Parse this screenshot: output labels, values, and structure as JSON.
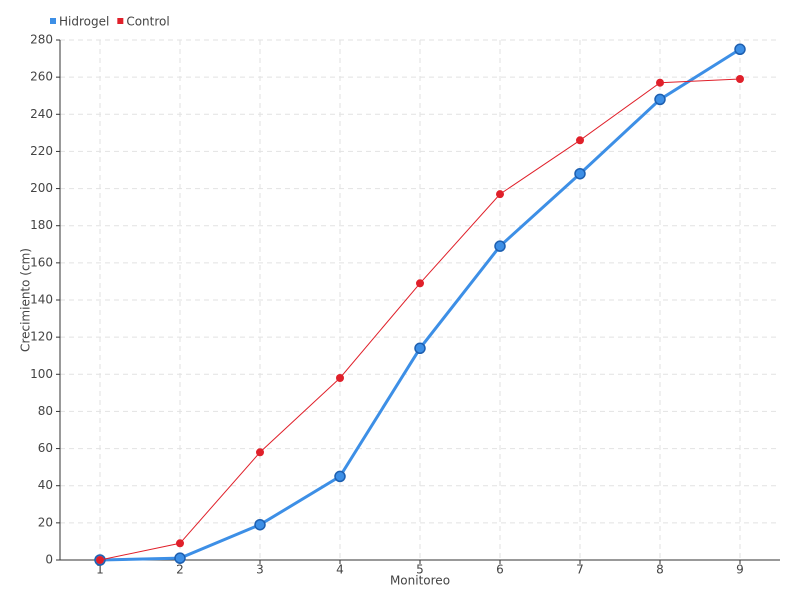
{
  "chart_data": {
    "type": "line",
    "x_label": "Monitoreo",
    "y_label": "Crecimiento (cm)",
    "x": [
      1,
      2,
      3,
      4,
      5,
      6,
      7,
      8,
      9
    ],
    "series": [
      {
        "name": "Hidrogel",
        "color": "#3d8fe6",
        "values": [
          0,
          1,
          19,
          45,
          114,
          169,
          208,
          248,
          275
        ]
      },
      {
        "name": "Control",
        "color": "#e0202a",
        "values": [
          0,
          9,
          58,
          98,
          149,
          197,
          226,
          257,
          259
        ]
      }
    ],
    "xlim": [
      0.5,
      9.5
    ],
    "xticks": [
      1,
      2,
      3,
      4,
      5,
      6,
      7,
      8,
      9
    ],
    "ylim": [
      0,
      280
    ],
    "yticks": [
      0,
      20,
      40,
      60,
      80,
      100,
      120,
      140,
      160,
      180,
      200,
      220,
      240,
      260,
      280
    ],
    "grid": true,
    "legend": "top-left"
  }
}
